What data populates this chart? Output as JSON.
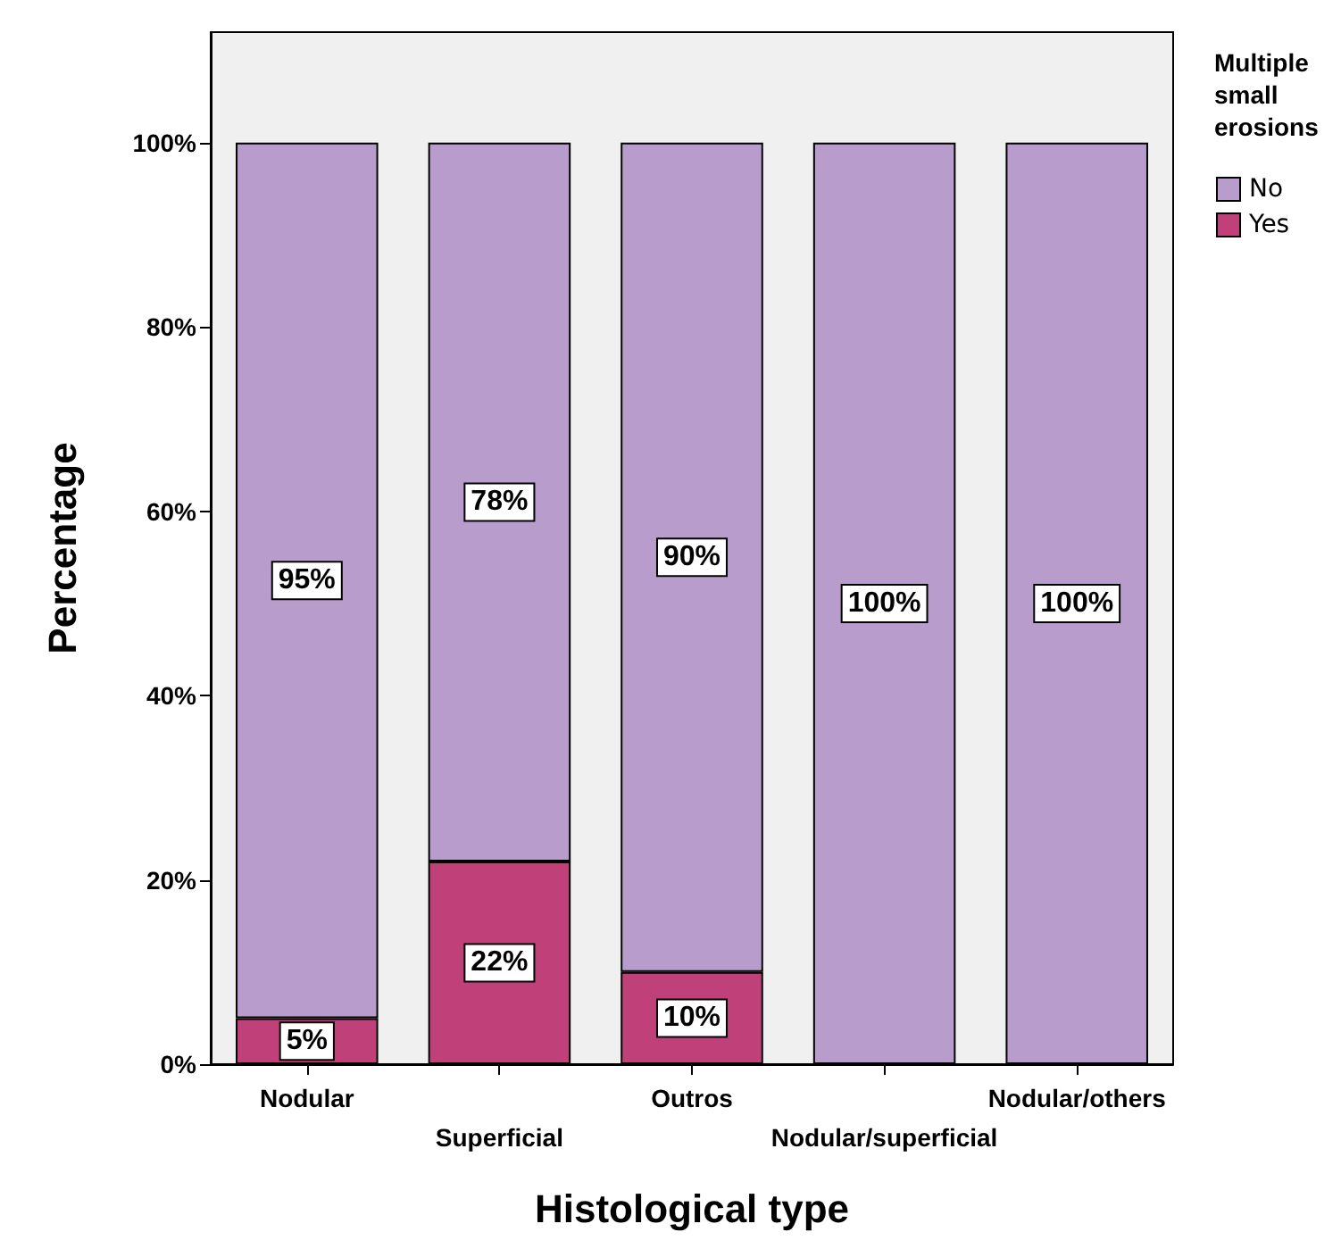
{
  "chart_data": {
    "type": "bar",
    "stacked": true,
    "xlabel": "Histological type",
    "ylabel": "Percentage",
    "legend_title": "Multiple small erosions",
    "legend": "top right",
    "grid": false,
    "categories": [
      "Nodular",
      "Superficial",
      "Outros",
      "Nodular/superficial",
      "Nodular/others"
    ],
    "ylim": [
      0,
      112
    ],
    "yticks": [
      {
        "value": 0,
        "label": "0%"
      },
      {
        "value": 20,
        "label": "20%"
      },
      {
        "value": 40,
        "label": "40%"
      },
      {
        "value": 60,
        "label": "60%"
      },
      {
        "value": 80,
        "label": "80%"
      },
      {
        "value": 100,
        "label": "100%"
      }
    ],
    "series": [
      {
        "name": "Yes",
        "color": "#c0407a",
        "values": [
          5,
          22,
          10,
          0,
          0
        ],
        "value_labels": [
          "5%",
          "22%",
          "10%",
          null,
          null
        ]
      },
      {
        "name": "No",
        "color": "#b89ccb",
        "values": [
          95,
          78,
          90,
          100,
          100
        ],
        "value_labels": [
          "95%",
          "78%",
          "90%",
          "100%",
          "100%"
        ]
      }
    ]
  }
}
